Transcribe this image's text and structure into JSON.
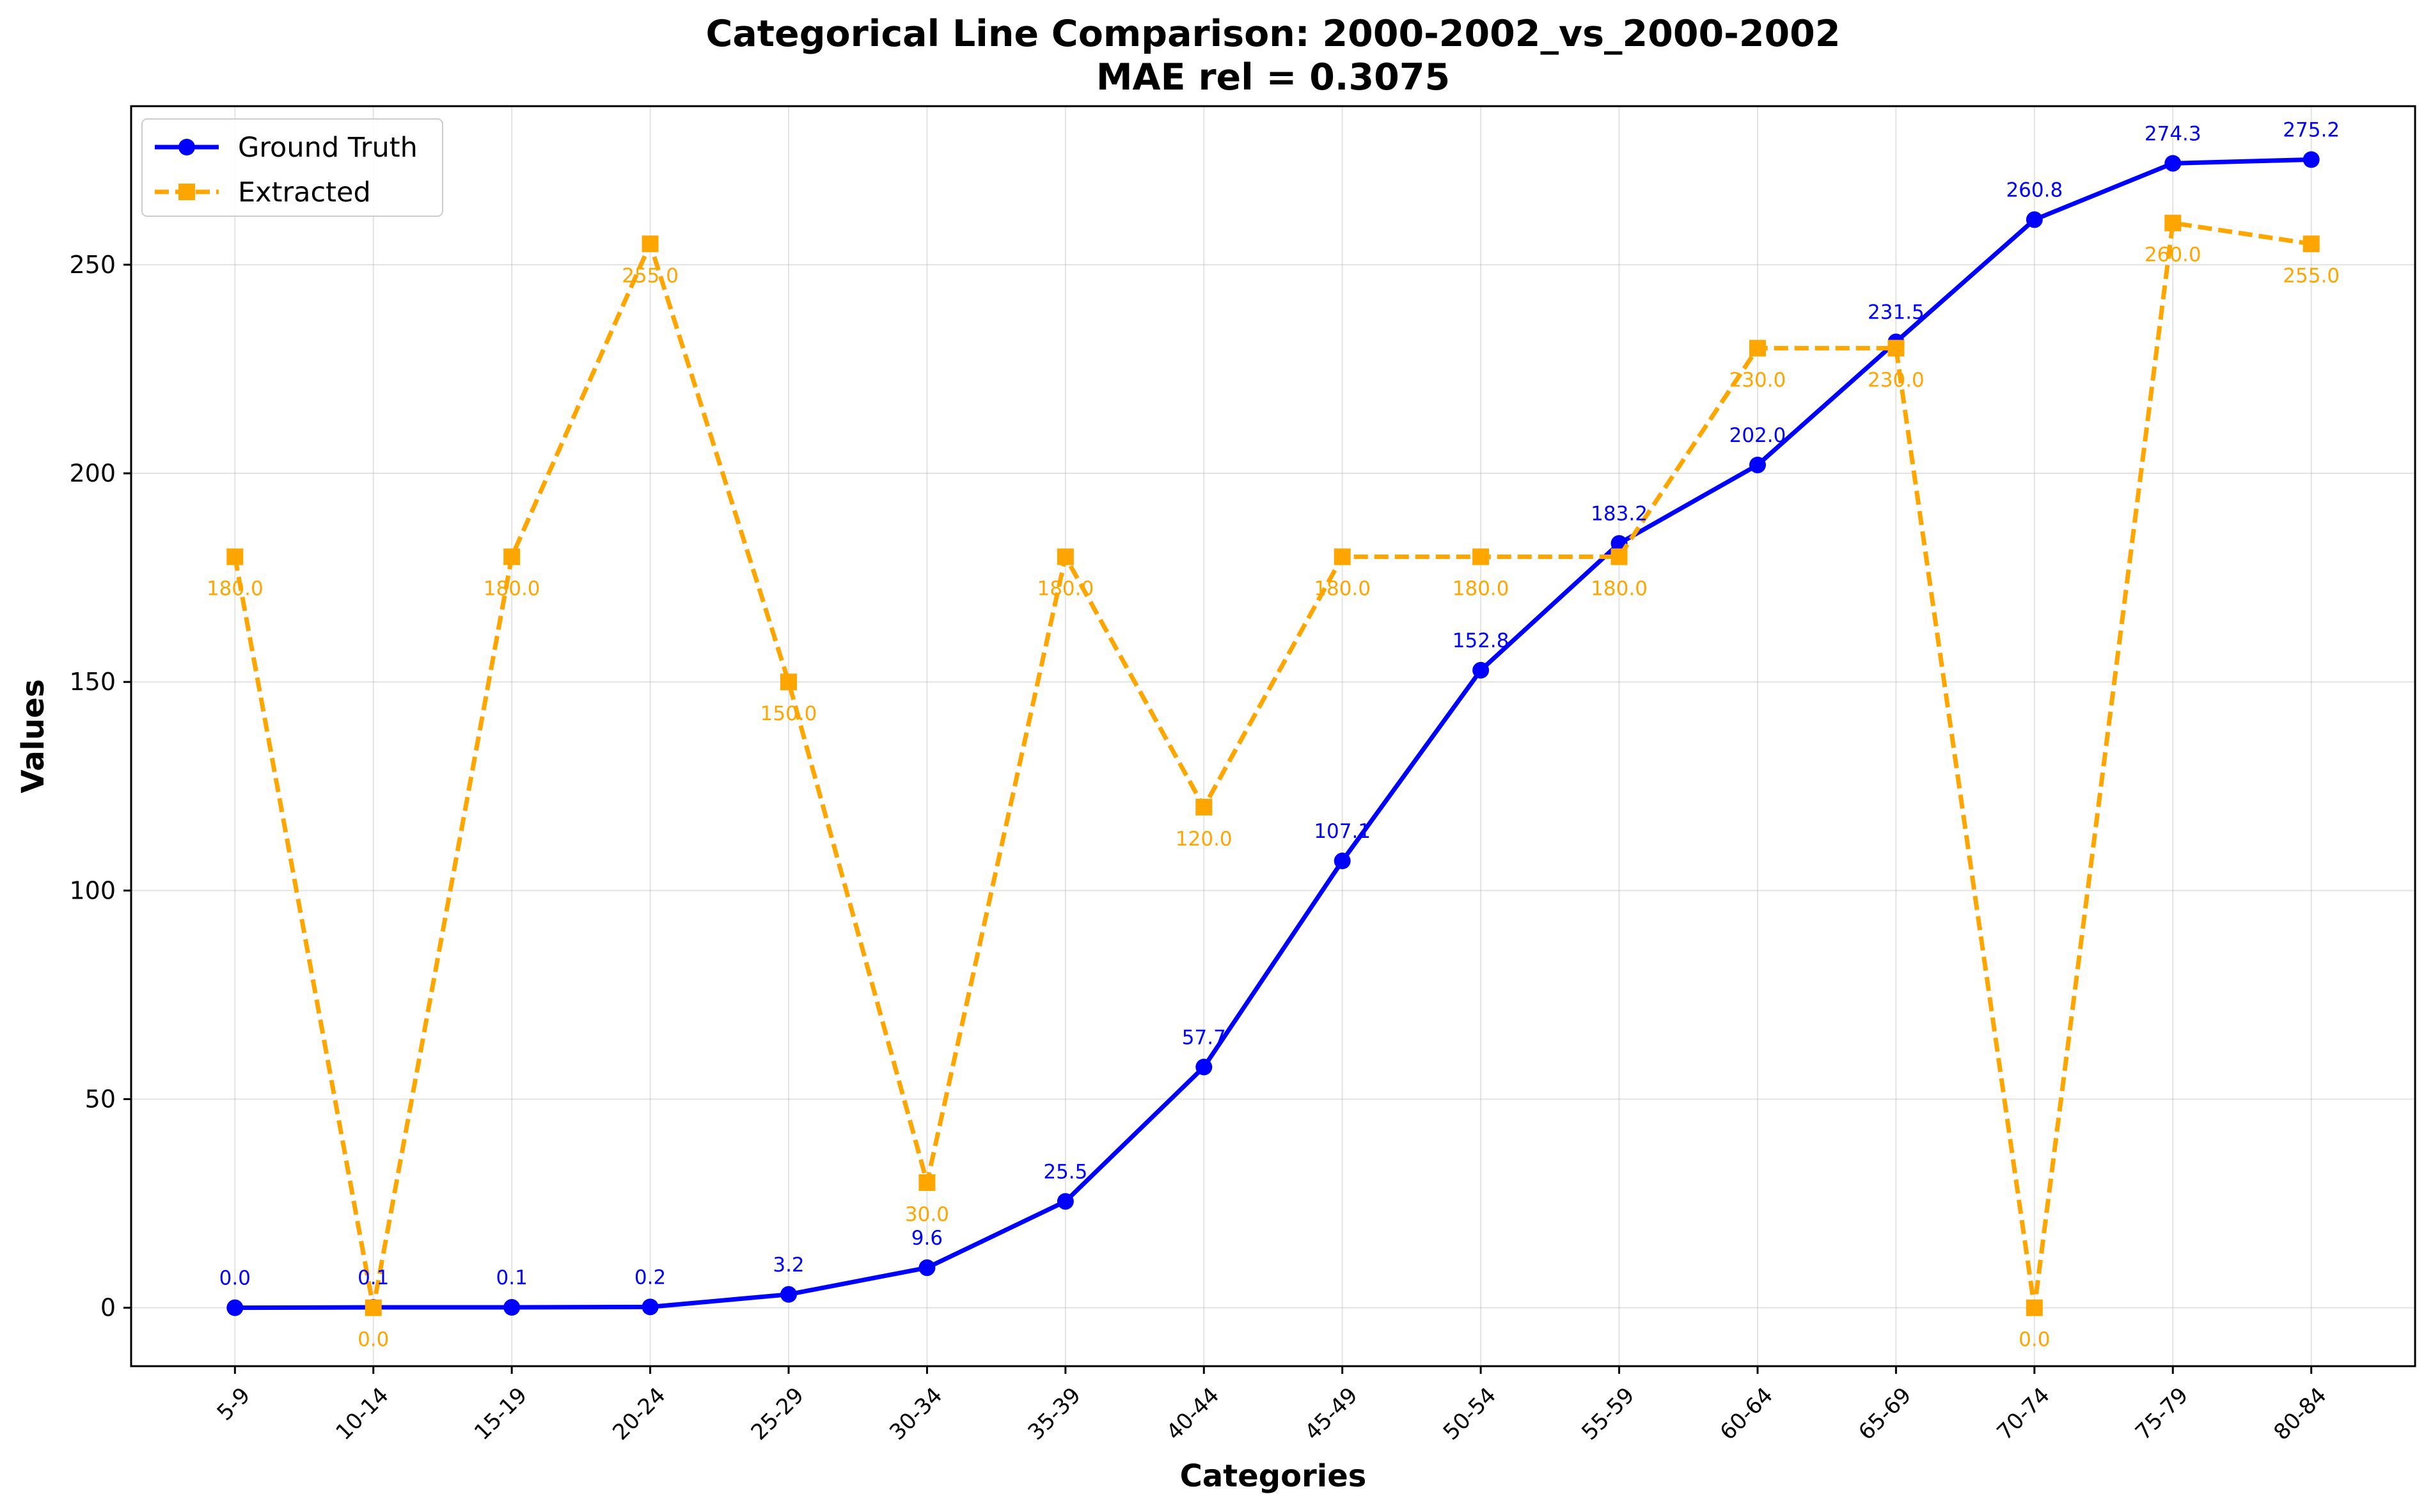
{
  "chart_data": {
    "type": "line",
    "title": "Categorical Line Comparison: 2000-2002_vs_2000-2002",
    "subtitle": "MAE rel = 0.3075",
    "xlabel": "Categories",
    "ylabel": "Values",
    "categories": [
      "5-9",
      "10-14",
      "15-19",
      "20-24",
      "25-29",
      "30-34",
      "35-39",
      "40-44",
      "45-49",
      "50-54",
      "55-59",
      "60-64",
      "65-69",
      "70-74",
      "75-79",
      "80-84"
    ],
    "ylim": [
      -14,
      288
    ],
    "yticks": [
      0,
      50,
      100,
      150,
      200,
      250
    ],
    "grid": true,
    "legend_position": "top-left",
    "series": [
      {
        "name": "Ground Truth",
        "color": "#0000ff",
        "line_style": "solid",
        "marker": "circle",
        "values": [
          0.0,
          0.1,
          0.1,
          0.2,
          3.2,
          9.6,
          25.5,
          57.7,
          107.1,
          152.8,
          183.2,
          202.0,
          231.5,
          260.8,
          274.3,
          275.2
        ],
        "labels": [
          "0.0",
          "0.1",
          "0.1",
          "0.2",
          "3.2",
          "9.6",
          "25.5",
          "57.7",
          "107.1",
          "152.8",
          "183.2",
          "202.0",
          "231.5",
          "260.8",
          "274.3",
          "275.2"
        ]
      },
      {
        "name": "Extracted",
        "color": "#ffa500",
        "line_style": "dashed",
        "marker": "square",
        "values": [
          180.0,
          0.0,
          180.0,
          255.0,
          150.0,
          30.0,
          180.0,
          120.0,
          180.0,
          180.0,
          180.0,
          230.0,
          230.0,
          0.0,
          260.0,
          255.0
        ],
        "labels": [
          "180.0",
          "0.0",
          "180.0",
          "255.0",
          "150.0",
          "30.0",
          "180.0",
          "120.0",
          "180.0",
          "180.0",
          "180.0",
          "230.0",
          "230.0",
          "0.0",
          "260.0",
          "255.0"
        ]
      }
    ]
  }
}
